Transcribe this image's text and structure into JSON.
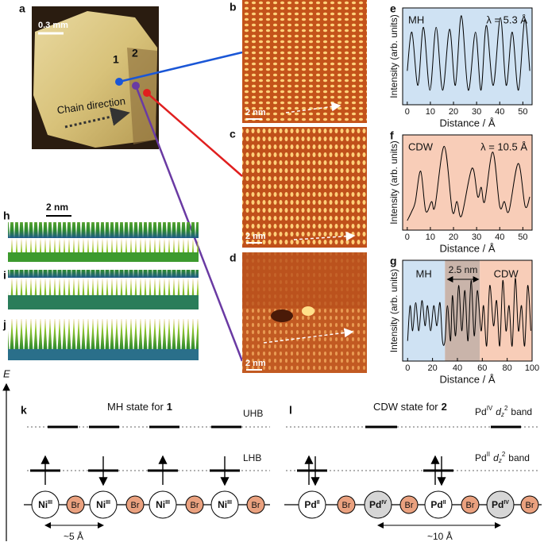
{
  "panels": {
    "a": {
      "label": "a",
      "scale": "0.3 mm",
      "marks": [
        "1",
        "2"
      ],
      "annotation": "Chain direction"
    },
    "b": {
      "label": "b",
      "scale": "2 nm"
    },
    "c": {
      "label": "c",
      "scale": "2 nm"
    },
    "d": {
      "label": "d",
      "scale": "2 nm"
    },
    "h": {
      "label": "h",
      "scale": "2 nm"
    },
    "i": {
      "label": "i"
    },
    "j": {
      "label": "j"
    }
  },
  "chart_data": [
    {
      "type": "line",
      "panel": "e",
      "state": "MH",
      "wavelength": "λ = 5.3 Å",
      "background": "#cfe2f3",
      "color": "#000000",
      "xlabel": "Distance / Å",
      "ylabel": "Intensity (arb. units)",
      "xlim": [
        -2,
        54
      ],
      "xticks": [
        0,
        10,
        20,
        30,
        40,
        50
      ],
      "ylim": [
        0,
        1
      ],
      "x": [
        0,
        2,
        4.6,
        7,
        9.8,
        12.5,
        15.3,
        18.3,
        20.8,
        23.4,
        26.4,
        29.5,
        31.9,
        34.2,
        37.2,
        40.3,
        42.8,
        45.4,
        48.1,
        50.8,
        53
      ],
      "values": [
        0.35,
        0.75,
        0.2,
        0.8,
        0.15,
        0.8,
        0.15,
        0.78,
        0.2,
        0.92,
        0.15,
        0.75,
        0.15,
        0.82,
        0.2,
        0.9,
        0.2,
        0.75,
        0.15,
        0.88,
        0.35
      ]
    },
    {
      "type": "line",
      "panel": "f",
      "state": "CDW",
      "wavelength": "λ = 10.5 Å",
      "background": "#f8cdb8",
      "color": "#000000",
      "xlabel": "Distance / Å",
      "ylabel": "Intensity (arb. units)",
      "xlim": [
        -2,
        54
      ],
      "xticks": [
        0,
        10,
        20,
        30,
        40,
        50
      ],
      "ylim": [
        0,
        1
      ],
      "x": [
        0,
        2,
        3.5,
        5.8,
        8,
        10.5,
        12,
        16,
        19.5,
        21.5,
        23.5,
        28,
        30.5,
        32,
        33.5,
        37,
        40,
        42,
        44,
        48,
        51,
        53
      ],
      "values": [
        0.1,
        0.2,
        0.3,
        0.62,
        0.2,
        0.3,
        0.25,
        0.88,
        0.2,
        0.3,
        0.15,
        0.65,
        0.35,
        0.45,
        0.3,
        0.82,
        0.25,
        0.3,
        0.2,
        0.7,
        0.25,
        0.35
      ]
    },
    {
      "type": "line",
      "panel": "g",
      "color": "#000000",
      "xlabel": "Distance / Å",
      "ylabel": "Intensity (arb. units)",
      "xlim": [
        -4,
        100
      ],
      "xticks": [
        0,
        20,
        40,
        60,
        80,
        100
      ],
      "ylim": [
        0,
        1
      ],
      "regions": [
        {
          "name": "MH",
          "from": -4,
          "to": 30,
          "color": "#cfe2f3"
        },
        {
          "from": 30,
          "to": 58,
          "color": "#c9b4aa"
        },
        {
          "name": "CDW",
          "from": 58,
          "to": 100,
          "color": "#f8cdb8"
        }
      ],
      "span": {
        "label": "2.5 nm",
        "from": 32,
        "to": 57
      },
      "x": [
        0,
        2,
        4,
        6.5,
        9,
        11.5,
        14,
        16,
        18.5,
        21,
        23.5,
        26,
        28,
        30,
        32,
        34.5,
        36,
        38.5,
        41,
        43.5,
        46,
        48.5,
        51,
        53.5,
        56,
        59,
        61,
        63.5,
        66,
        69,
        71.5,
        74,
        76.5,
        79,
        81.5,
        84,
        86.5,
        89,
        91.5,
        94,
        96.5,
        99
      ],
      "values": [
        0.2,
        0.55,
        0.3,
        0.58,
        0.3,
        0.6,
        0.35,
        0.55,
        0.3,
        0.55,
        0.35,
        0.58,
        0.2,
        0.2,
        0.55,
        0.2,
        0.65,
        0.25,
        0.75,
        0.3,
        0.7,
        0.2,
        0.8,
        0.25,
        0.7,
        0.3,
        0.55,
        0.15,
        0.75,
        0.35,
        0.6,
        0.15,
        0.8,
        0.3,
        0.55,
        0.15,
        0.82,
        0.3,
        0.55,
        0.15,
        0.75,
        0.3
      ]
    }
  ],
  "diagram": {
    "axis": "E",
    "k": {
      "label": "k",
      "title": [
        "MH state for",
        "1"
      ],
      "upper_band": "UHB",
      "lower_band": "LHB",
      "distance": "~5 Å",
      "atoms": [
        {
          "symbol": "Ni",
          "charge": "III",
          "color": "#ffffff"
        },
        {
          "symbol": "Br",
          "color": "#eaa17f"
        },
        {
          "symbol": "Ni",
          "charge": "III",
          "color": "#ffffff"
        },
        {
          "symbol": "Br",
          "color": "#eaa17f"
        },
        {
          "symbol": "Ni",
          "charge": "III",
          "color": "#ffffff"
        },
        {
          "symbol": "Br",
          "color": "#eaa17f"
        },
        {
          "symbol": "Ni",
          "charge": "III",
          "color": "#ffffff"
        },
        {
          "symbol": "Br",
          "color": "#eaa17f"
        }
      ]
    },
    "l": {
      "label": "l",
      "title": "CDW state for",
      "title_bold": "2",
      "upper_band": [
        "Pd",
        "IV",
        "d",
        "z",
        "2",
        "band"
      ],
      "lower_band": [
        "Pd",
        "II",
        "d",
        "z",
        "2",
        "band"
      ],
      "distance": "~10 Å",
      "atoms": [
        {
          "symbol": "Pd",
          "charge": "II",
          "color": "#ffffff"
        },
        {
          "symbol": "Br",
          "color": "#eaa17f"
        },
        {
          "symbol": "Pd",
          "charge": "IV",
          "color": "#d6d6d6"
        },
        {
          "symbol": "Br",
          "color": "#eaa17f"
        },
        {
          "symbol": "Pd",
          "charge": "II",
          "color": "#ffffff"
        },
        {
          "symbol": "Br",
          "color": "#eaa17f"
        },
        {
          "symbol": "Pd",
          "charge": "IV",
          "color": "#d6d6d6"
        },
        {
          "symbol": "Br",
          "color": "#eaa17f"
        }
      ]
    }
  }
}
